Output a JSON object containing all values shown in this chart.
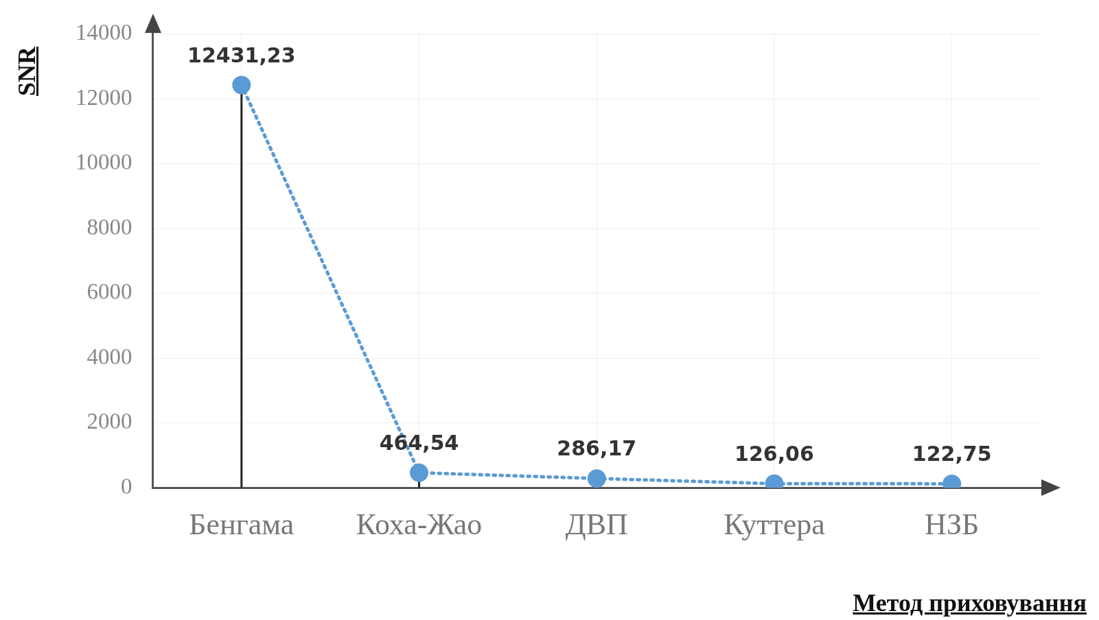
{
  "chart_data": {
    "type": "line",
    "xlabel": "Метод приховування",
    "ylabel": "SNR",
    "categories": [
      "Бенгама",
      "Коха-Жао",
      "ДВП",
      "Куттера",
      "НЗБ"
    ],
    "series": [
      {
        "color": "#5b9bd5",
        "values": [
          12431.23,
          464.54,
          286.17,
          126.06,
          122.75
        ],
        "value_labels": [
          "12431,23",
          "464,54",
          "286,17",
          "126,06",
          "122,75"
        ],
        "errors": [
          [
            0,
            12431.23
          ],
          [
            0,
            464.54
          ],
          null,
          null,
          null
        ]
      }
    ],
    "ylim": [
      0,
      14000
    ],
    "yticks": [
      0,
      2000,
      4000,
      6000,
      8000,
      10000,
      12000,
      14000
    ],
    "grid": true,
    "legend": false,
    "marker": "circle",
    "line_style": "dotted"
  }
}
